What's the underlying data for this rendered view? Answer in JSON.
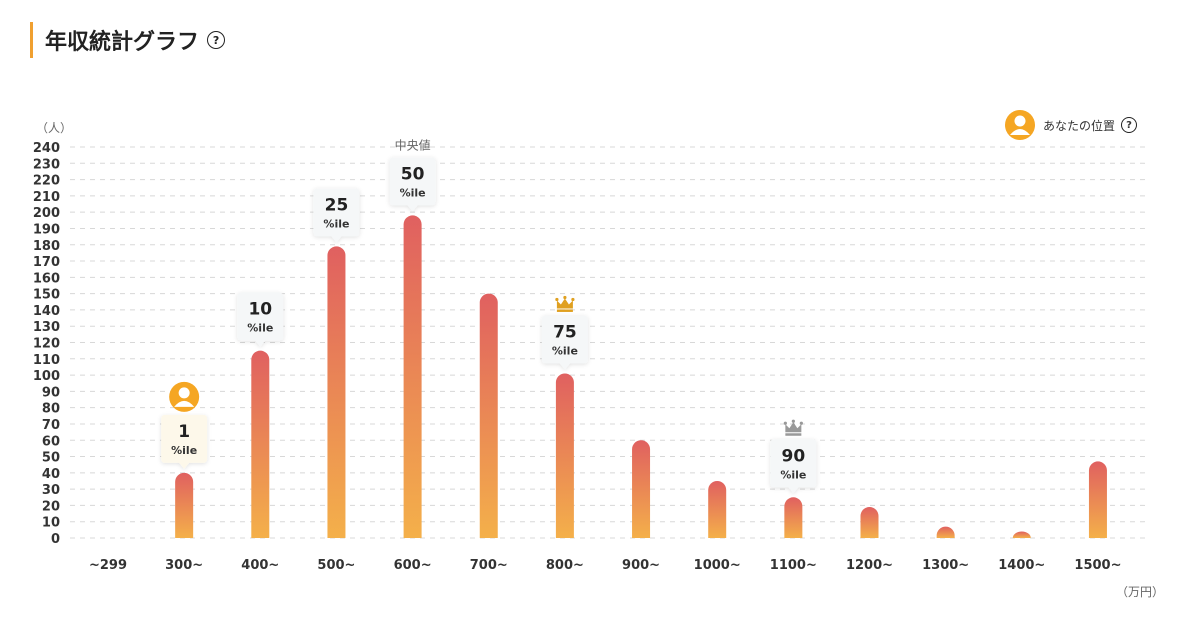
{
  "header": {
    "title": "年収統計グラフ",
    "help_icon": "question-circle-icon",
    "help_glyph": "?"
  },
  "legend": {
    "label": "あなたの位置",
    "icon": "user-avatar-icon",
    "help_icon": "question-circle-icon",
    "help_glyph": "?"
  },
  "chart_data": {
    "type": "bar",
    "categories": [
      "~299",
      "300~",
      "400~",
      "500~",
      "600~",
      "700~",
      "800~",
      "900~",
      "1000~",
      "1100~",
      "1200~",
      "1300~",
      "1400~",
      "1500~"
    ],
    "values": [
      0,
      40,
      115,
      179,
      198,
      150,
      101,
      60,
      35,
      25,
      19,
      7,
      4,
      47
    ],
    "ylabel": "（人）",
    "xlabel": "（万円）",
    "ylim": [
      0,
      240
    ],
    "yticks": [
      0,
      10,
      20,
      30,
      40,
      50,
      60,
      70,
      80,
      90,
      100,
      110,
      120,
      130,
      140,
      150,
      160,
      170,
      180,
      190,
      200,
      210,
      220,
      230,
      240
    ],
    "grid": true,
    "bar_gradient": {
      "top": "#e06060",
      "bottom": "#f4b04a"
    },
    "percentiles": [
      {
        "category": "300~",
        "value": "1",
        "unit": "%ile",
        "highlight": true
      },
      {
        "category": "400~",
        "value": "10",
        "unit": "%ile"
      },
      {
        "category": "500~",
        "value": "25",
        "unit": "%ile"
      },
      {
        "category": "600~",
        "value": "50",
        "unit": "%ile",
        "annotation": "中央値"
      },
      {
        "category": "800~",
        "value": "75",
        "unit": "%ile",
        "crown": "gold"
      },
      {
        "category": "1100~",
        "value": "90",
        "unit": "%ile",
        "crown": "silver"
      }
    ],
    "user_position": "300~",
    "colors": {
      "gold": "#e0a020",
      "silver": "#999999",
      "avatar": "#f5a623"
    }
  }
}
